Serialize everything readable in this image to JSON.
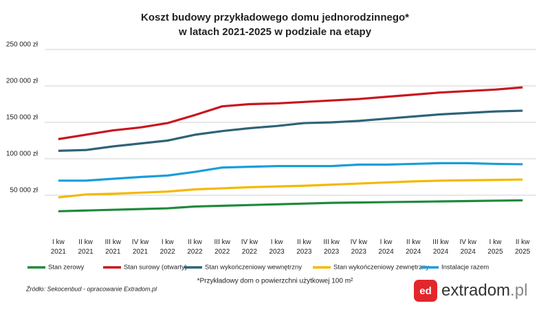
{
  "chart_data": {
    "type": "line",
    "title": "Koszt budowy przykładowego domu jednorodzinnego*",
    "subtitle": "w latach 2021-2025 w podziale na etapy",
    "categories": [
      "I kw 2021",
      "II kw 2021",
      "III kw 2021",
      "IV kw 2021",
      "I kw 2022",
      "II kw 2022",
      "III kw 2022",
      "IV kw 2022",
      "I kw 2023",
      "II kw 2023",
      "III kw 2023",
      "IV kw 2023",
      "I kw 2024",
      "II kw 2024",
      "III kw 2024",
      "IV kw 2024",
      "I kw 2025",
      "II kw 2025"
    ],
    "series": [
      {
        "name": "Stan zerowy",
        "color": "#1e8a3c",
        "values": [
          28000,
          29000,
          30000,
          31000,
          32000,
          34500,
          35500,
          36500,
          37500,
          38500,
          39500,
          40000,
          40500,
          41000,
          41500,
          42000,
          42500,
          43000
        ]
      },
      {
        "name": "Stan surowy (otwarty)",
        "color": "#c8161d",
        "values": [
          127000,
          133000,
          139000,
          143000,
          149000,
          160000,
          172000,
          175000,
          176000,
          178000,
          180000,
          182000,
          185000,
          188000,
          191000,
          193000,
          195000,
          198000
        ]
      },
      {
        "name": "Stan wykończeniowy wewnętrzny",
        "color": "#2e6378",
        "values": [
          111000,
          112000,
          117000,
          121000,
          125000,
          133000,
          138000,
          142000,
          145000,
          149000,
          150000,
          152000,
          155000,
          158000,
          161000,
          163000,
          165000,
          166000
        ]
      },
      {
        "name": "Stan wykończeniowy zewnętrzny",
        "color": "#f5b800",
        "values": [
          47000,
          51000,
          52000,
          53500,
          55000,
          58000,
          59500,
          61000,
          62000,
          63000,
          64500,
          66000,
          67500,
          69000,
          70000,
          70500,
          71000,
          71500
        ]
      },
      {
        "name": "Instalacje razem",
        "color": "#1a9dd9",
        "values": [
          70000,
          70000,
          72500,
          75000,
          77000,
          82000,
          88000,
          89000,
          90000,
          90000,
          90000,
          92000,
          92000,
          93000,
          94000,
          94000,
          93000,
          92500
        ]
      }
    ],
    "ylim": [
      0,
      250000
    ],
    "yticks": [
      {
        "value": 50000,
        "label": "50 000 zł"
      },
      {
        "value": 100000,
        "label": "100 000 zł"
      },
      {
        "value": 150000,
        "label": "150 000 zł"
      },
      {
        "value": 200000,
        "label": "200 000 zł"
      },
      {
        "value": 250000,
        "label": "250 000 zł"
      }
    ],
    "grid": true,
    "legend": "bottom"
  },
  "source": "Źródło: Sekocenbud - opracowanie Extradom.pl",
  "footnote": "*Przykładowy dom o powierzchni użytkowej 100 m²",
  "logo": {
    "icon": "ed",
    "name": "extradom",
    "suffix": ".pl"
  }
}
